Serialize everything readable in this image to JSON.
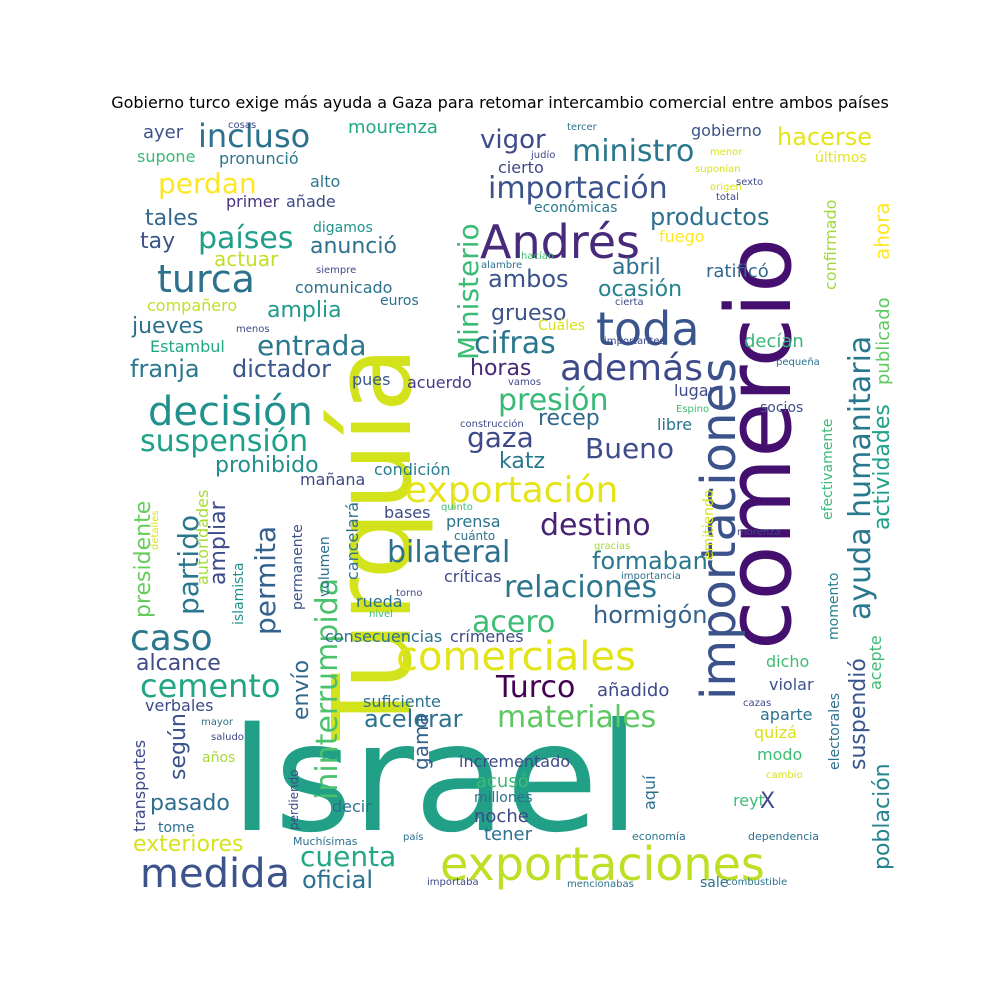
{
  "chart_data": {
    "type": "wordcloud",
    "title": "Gobierno turco exige más ayuda a Gaza para retomar intercambio comercial entre ambos países",
    "words": [
      {
        "t": "Israel",
        "c": "#21a087"
      },
      {
        "t": "Turquía",
        "c": "#d2e21b"
      },
      {
        "t": "comercio",
        "c": "#440f6e"
      },
      {
        "t": "importaciones",
        "c": "#3b528b"
      },
      {
        "t": "exportaciones",
        "c": "#bddf26"
      },
      {
        "t": "Andrés",
        "c": "#472a7a"
      },
      {
        "t": "toda",
        "c": "#3a548c"
      },
      {
        "t": "comerciales",
        "c": "#e2e418"
      },
      {
        "t": "ayuda humanitaria",
        "c": "#2a788e"
      },
      {
        "t": "decisión",
        "c": "#20918c"
      },
      {
        "t": "medida",
        "c": "#3b528b"
      },
      {
        "t": "Ministerio",
        "c": "#3bbb75"
      },
      {
        "t": "turca",
        "c": "#2c728e"
      },
      {
        "t": "caso",
        "c": "#2a778e"
      },
      {
        "t": "exportación",
        "c": "#e5e419"
      },
      {
        "t": "además",
        "c": "#3e4a89"
      },
      {
        "t": "ininterrumpida",
        "c": "#4ac16d"
      },
      {
        "t": "materiales",
        "c": "#5ec962"
      },
      {
        "t": "cemento",
        "c": "#21a685"
      },
      {
        "t": "bilateral",
        "c": "#2e6e8e"
      },
      {
        "t": "destino",
        "c": "#482374"
      },
      {
        "t": "suspensión",
        "c": "#1fa088"
      },
      {
        "t": "permita",
        "c": "#33638d"
      },
      {
        "t": "incluso",
        "c": "#2c718e"
      },
      {
        "t": "importación",
        "c": "#3b528b"
      },
      {
        "t": "ministro",
        "c": "#2a788e"
      },
      {
        "t": "países",
        "c": "#1f9e89"
      },
      {
        "t": "Turco",
        "c": "#440154"
      },
      {
        "t": "cifras",
        "c": "#2a768e"
      },
      {
        "t": "presión",
        "c": "#38b977"
      },
      {
        "t": "acero",
        "c": "#3dbc74"
      },
      {
        "t": "relaciones",
        "c": "#2a768e"
      },
      {
        "t": "cuenta",
        "c": "#22a884"
      },
      {
        "t": "partido",
        "c": "#2a788e"
      },
      {
        "t": "Bueno",
        "c": "#3e4c8a"
      },
      {
        "t": "gaza",
        "c": "#3e4989"
      },
      {
        "t": "perdan",
        "c": "#fde725"
      },
      {
        "t": "entrada",
        "c": "#2a778e"
      },
      {
        "t": "población",
        "c": "#25848e"
      },
      {
        "t": "actividades",
        "c": "#1fa088"
      },
      {
        "t": "según",
        "c": "#3b528b"
      },
      {
        "t": "envío",
        "c": "#31688e"
      },
      {
        "t": "exteriores",
        "c": "#d8e219"
      },
      {
        "t": "oficial",
        "c": "#2c718e"
      },
      {
        "t": "suspendió",
        "c": "#39558c"
      },
      {
        "t": "vigor",
        "c": "#3e4a89"
      },
      {
        "t": "hacerse",
        "c": "#e5e419"
      },
      {
        "t": "presidente",
        "c": "#67cc5c"
      },
      {
        "t": "acelerar",
        "c": "#2c718e"
      },
      {
        "t": "hormigón",
        "c": "#33628d"
      },
      {
        "t": "prohibido",
        "c": "#21908d"
      },
      {
        "t": "amplia",
        "c": "#1f9a8a"
      },
      {
        "t": "alcance",
        "c": "#3e4989"
      },
      {
        "t": "ambos",
        "c": "#3b528b"
      },
      {
        "t": "productos",
        "c": "#2d708e"
      },
      {
        "t": "formaban",
        "c": "#2a788e"
      },
      {
        "t": "ampliar",
        "c": "#3e4989"
      },
      {
        "t": "franja",
        "c": "#2a788e"
      },
      {
        "t": "dictador",
        "c": "#39568c"
      },
      {
        "t": "pasado",
        "c": "#2e6e8e"
      },
      {
        "t": "gama",
        "c": "#35608d"
      },
      {
        "t": "horas",
        "c": "#482878"
      },
      {
        "t": "ocasión",
        "c": "#26828e"
      },
      {
        "t": "recep",
        "c": "#31688e"
      },
      {
        "t": "katz",
        "c": "#2a788e"
      },
      {
        "t": "anunció",
        "c": "#2d708e"
      },
      {
        "t": "tales",
        "c": "#31688e"
      },
      {
        "t": "tay",
        "c": "#3b528b"
      },
      {
        "t": "grueso",
        "c": "#3b528b"
      },
      {
        "t": "abril",
        "c": "#2c718e"
      },
      {
        "t": "jueves",
        "c": "#2c718e"
      },
      {
        "t": "actuar",
        "c": "#c2df23"
      },
      {
        "t": "ahora",
        "c": "#fde725"
      },
      {
        "t": "publicado",
        "c": "#5ec962"
      },
      {
        "t": "confirmado",
        "c": "#a0da39"
      },
      {
        "t": "ratificó",
        "c": "#31688e"
      },
      {
        "t": "decían",
        "c": "#35b779"
      },
      {
        "t": "mourenza",
        "c": "#22a884"
      },
      {
        "t": "ayer",
        "c": "#3b528b"
      },
      {
        "t": "supone",
        "c": "#39b977"
      },
      {
        "t": "pronunció",
        "c": "#2a788e"
      },
      {
        "t": "alto",
        "c": "#2a788e"
      },
      {
        "t": "primer",
        "c": "#46337f"
      },
      {
        "t": "añade",
        "c": "#3e4a89"
      },
      {
        "t": "cierto",
        "c": "#414487"
      },
      {
        "t": "económicas",
        "c": "#2a788e"
      },
      {
        "t": "fuego",
        "c": "#fde725"
      },
      {
        "t": "gobierno",
        "c": "#3b528b"
      },
      {
        "t": "últimos",
        "c": "#e2e418"
      },
      {
        "t": "digamos",
        "c": "#20928c"
      },
      {
        "t": "compañero",
        "c": "#c0df25"
      },
      {
        "t": "comunicado",
        "c": "#2c718e"
      },
      {
        "t": "Estambul",
        "c": "#22a785"
      },
      {
        "t": "pues",
        "c": "#38588c"
      },
      {
        "t": "acuerdo",
        "c": "#443983"
      },
      {
        "t": "lugar",
        "c": "#3e4989"
      },
      {
        "t": "libre",
        "c": "#2c718e"
      },
      {
        "t": "socios",
        "c": "#3b528b"
      },
      {
        "t": "efectivamente",
        "c": "#3bbb75"
      },
      {
        "t": "condición",
        "c": "#287d8e"
      },
      {
        "t": "mañana",
        "c": "#3e4989"
      },
      {
        "t": "prensa",
        "c": "#2c718e"
      },
      {
        "t": "bases",
        "c": "#3e4989"
      },
      {
        "t": "autoridades",
        "c": "#a5db36"
      },
      {
        "t": "cancelará",
        "c": "#2c718e"
      },
      {
        "t": "permanente",
        "c": "#3b528b"
      },
      {
        "t": "islamista",
        "c": "#21918c"
      },
      {
        "t": "volumen",
        "c": "#2c718e"
      },
      {
        "t": "críticas",
        "c": "#3e4989"
      },
      {
        "t": "rueda",
        "c": "#2c718e"
      },
      {
        "t": "momento",
        "c": "#26828e"
      },
      {
        "t": "electorales",
        "c": "#2c718e"
      },
      {
        "t": "emitiendo",
        "c": "#d8e219"
      },
      {
        "t": "consecuencias",
        "c": "#2c718e"
      },
      {
        "t": "crímenes",
        "c": "#3e4989"
      },
      {
        "t": "dicho",
        "c": "#3dbc74"
      },
      {
        "t": "violar",
        "c": "#3b528b"
      },
      {
        "t": "acepte",
        "c": "#3bbb75"
      },
      {
        "t": "suficiente",
        "c": "#2c718e"
      },
      {
        "t": "añadido",
        "c": "#3e4989"
      },
      {
        "t": "aparte",
        "c": "#2c718e"
      },
      {
        "t": "quizá",
        "c": "#d8e219"
      },
      {
        "t": "modo",
        "c": "#3dbc74"
      },
      {
        "t": "incrementado",
        "c": "#3e4989"
      },
      {
        "t": "acusó",
        "c": "#3dbc74"
      },
      {
        "t": "aquí",
        "c": "#2c718e"
      },
      {
        "t": "reyt",
        "c": "#3dbc74"
      },
      {
        "t": "X",
        "c": "#3e4989"
      },
      {
        "t": "millones",
        "c": "#2c718e"
      },
      {
        "t": "noche",
        "c": "#3e4989"
      },
      {
        "t": "tener",
        "c": "#2c718e"
      },
      {
        "t": "decir",
        "c": "#2c718e"
      },
      {
        "t": "verbales",
        "c": "#3e4989"
      },
      {
        "t": "transportes",
        "c": "#3e4989"
      },
      {
        "t": "tome",
        "c": "#2c718e"
      },
      {
        "t": "años",
        "c": "#a5db36"
      },
      {
        "t": "perdiendo",
        "c": "#3e4989"
      },
      {
        "t": "Muchísimas",
        "c": "#2c718e"
      },
      {
        "t": "país",
        "c": "#2c718e"
      },
      {
        "t": "economía",
        "c": "#2c718e"
      },
      {
        "t": "dependencia",
        "c": "#2c718e"
      },
      {
        "t": "importaba",
        "c": "#3e4989"
      },
      {
        "t": "mencionabas",
        "c": "#2c718e"
      },
      {
        "t": "sale",
        "c": "#2c718e"
      },
      {
        "t": "combustible",
        "c": "#2c718e"
      },
      {
        "t": "cosas",
        "c": "#3e4989"
      },
      {
        "t": "tercer",
        "c": "#2c718e"
      },
      {
        "t": "judío",
        "c": "#3e4989"
      },
      {
        "t": "menor",
        "c": "#d8e219"
      },
      {
        "t": "suponían",
        "c": "#d8e219"
      },
      {
        "t": "origen",
        "c": "#d8e219"
      },
      {
        "t": "total",
        "c": "#3e4989"
      },
      {
        "t": "sexto",
        "c": "#3e4989"
      },
      {
        "t": "hacían",
        "c": "#3dbc74"
      },
      {
        "t": "alambre",
        "c": "#2c718e"
      },
      {
        "t": "siempre",
        "c": "#3e4989"
      },
      {
        "t": "euros",
        "c": "#2c718e"
      },
      {
        "t": "cierta",
        "c": "#3e4989"
      },
      {
        "t": "menos",
        "c": "#3e4989"
      },
      {
        "t": "Cuáles",
        "c": "#d8e219"
      },
      {
        "t": "vamos",
        "c": "#3e4989"
      },
      {
        "t": "importantes",
        "c": "#3e4989"
      },
      {
        "t": "pequeña",
        "c": "#2c718e"
      },
      {
        "t": "Espino",
        "c": "#3dbc74"
      },
      {
        "t": "construcción",
        "c": "#3e4989"
      },
      {
        "t": "quinto",
        "c": "#3dbc74"
      },
      {
        "t": "cuánto",
        "c": "#2c718e"
      },
      {
        "t": "gracias",
        "c": "#a5db36"
      },
      {
        "t": "morenza",
        "c": "#3e4989"
      },
      {
        "t": "importancia",
        "c": "#2c718e"
      },
      {
        "t": "torno",
        "c": "#3e4989"
      },
      {
        "t": "nivel",
        "c": "#3dbc74"
      },
      {
        "t": "detalles",
        "c": "#d8e219"
      },
      {
        "t": "mayor",
        "c": "#2c718e"
      },
      {
        "t": "saludo",
        "c": "#3e4989"
      },
      {
        "t": "cazas",
        "c": "#3e4989"
      },
      {
        "t": "cambio",
        "c": "#d8e219"
      }
    ]
  }
}
